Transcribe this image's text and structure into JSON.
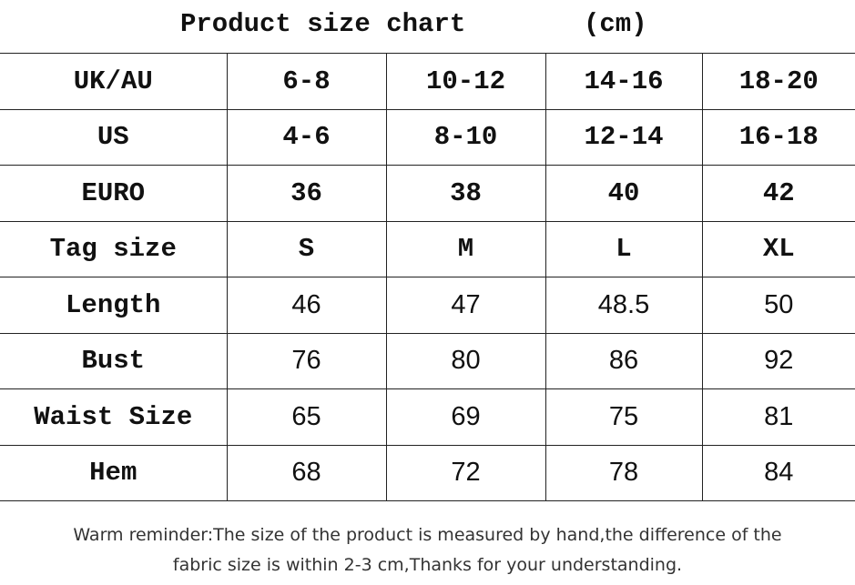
{
  "header": {
    "title": "Product size chart",
    "unit": "(cm)"
  },
  "table": {
    "rows": [
      [
        "UK/AU",
        "6-8",
        "10-12",
        "14-16",
        "18-20"
      ],
      [
        "US",
        "4-6",
        "8-10",
        "12-14",
        "16-18"
      ],
      [
        "EURO",
        "36",
        "38",
        "40",
        "42"
      ],
      [
        "Tag size",
        "S",
        "M",
        "L",
        "XL"
      ],
      [
        "Length",
        "46",
        "47",
        "48.5",
        "50"
      ],
      [
        "Bust",
        "76",
        "80",
        "86",
        "92"
      ],
      [
        "Waist Size",
        "65",
        "69",
        "75",
        "81"
      ],
      [
        "Hem",
        "68",
        "72",
        "78",
        "84"
      ]
    ]
  },
  "footer": {
    "lines": [
      "Warm reminder:The size of the product is measured by hand,the difference of the",
      "fabric size is within 2-3 cm,Thanks for your understanding."
    ]
  }
}
